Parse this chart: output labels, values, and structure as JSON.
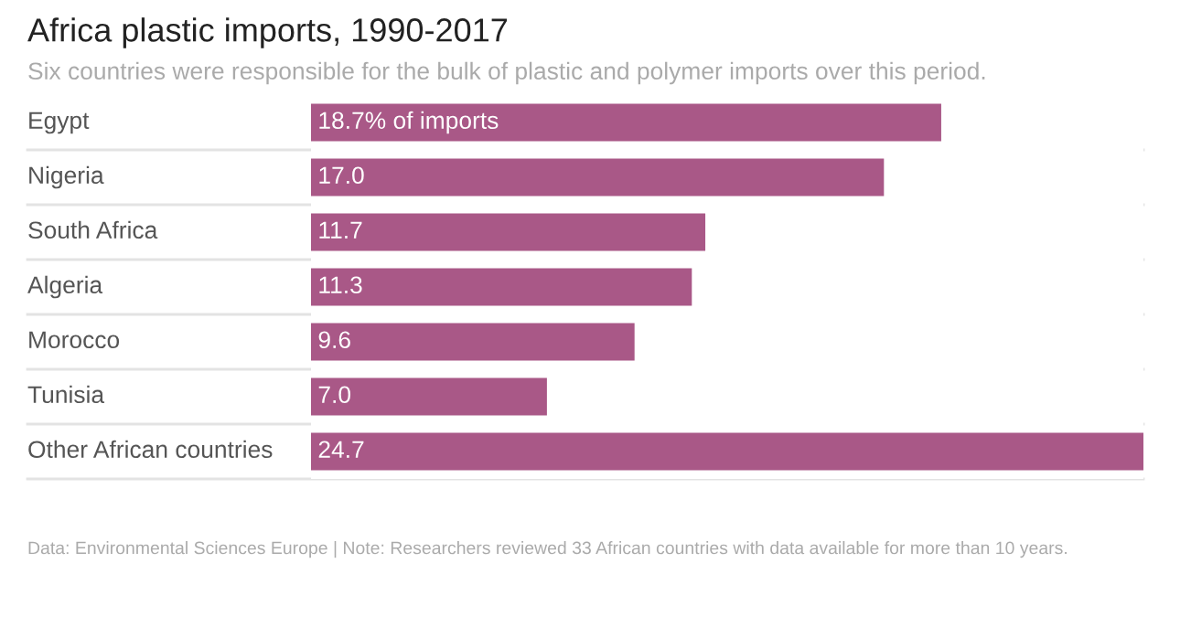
{
  "chart_data": {
    "type": "bar",
    "orientation": "horizontal",
    "title": "Africa plastic imports, 1990-2017",
    "subtitle": "Six countries were responsible for the bulk of plastic and polymer imports over this period.",
    "categories": [
      "Egypt",
      "Nigeria",
      "South Africa",
      "Algeria",
      "Morocco",
      "Tunisia",
      "Other African countries"
    ],
    "values": [
      18.7,
      17.0,
      11.7,
      11.3,
      9.6,
      7.0,
      24.7
    ],
    "value_labels": [
      "18.7% of imports",
      "17.0",
      "11.7",
      "11.3",
      "9.6",
      "7.0",
      "24.7"
    ],
    "color": "#a95887",
    "grid": "y",
    "annotations": [
      "Data: Environmental Sciences Europe | Note: Researchers reviewed 33 African countries with data available for more than 10 years."
    ]
  }
}
